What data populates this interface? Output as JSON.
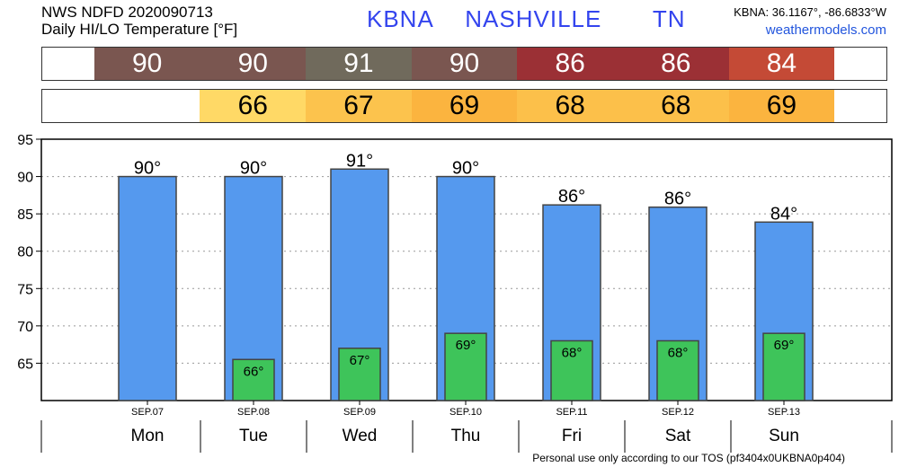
{
  "header": {
    "line1": "NWS NDFD 2020090713",
    "line2": "Daily HI/LO Temperature [°F]",
    "station": "KBNA",
    "city": "NASHVILLE",
    "state": "TN",
    "coords": "KBNA: 36.1167°, -86.6833°W",
    "site": "weathermodels.com"
  },
  "hi_strip": [
    {
      "value": "90",
      "color": "#7a5650"
    },
    {
      "value": "90",
      "color": "#7a5650"
    },
    {
      "value": "91",
      "color": "#706a5c"
    },
    {
      "value": "90",
      "color": "#7a5650"
    },
    {
      "value": "86",
      "color": "#9b3035"
    },
    {
      "value": "86",
      "color": "#9b3035"
    },
    {
      "value": "84",
      "color": "#c44a36"
    }
  ],
  "lo_strip": [
    {
      "value": "",
      "color": "#ffffff"
    },
    {
      "value": "66",
      "color": "#ffd966"
    },
    {
      "value": "67",
      "color": "#fcc34d"
    },
    {
      "value": "69",
      "color": "#fbb43f"
    },
    {
      "value": "68",
      "color": "#fcc04a"
    },
    {
      "value": "68",
      "color": "#fcc04a"
    },
    {
      "value": "69",
      "color": "#fbb43f"
    }
  ],
  "chart_data": {
    "type": "bar",
    "categories": [
      "SEP.07",
      "SEP.08",
      "SEP.09",
      "SEP.10",
      "SEP.11",
      "SEP.12",
      "SEP.13"
    ],
    "weekdays": [
      "Mon",
      "Tue",
      "Wed",
      "Thu",
      "Fri",
      "Sat",
      "Sun"
    ],
    "series": [
      {
        "values": [
          90,
          90,
          91,
          90,
          86.2,
          85.9,
          83.9
        ],
        "labels": [
          "90°",
          "90°",
          "91°",
          "90°",
          "86°",
          "86°",
          "84°"
        ],
        "color": "#5599ee"
      },
      {
        "values": [
          null,
          65.5,
          67,
          69,
          68,
          68,
          69
        ],
        "labels": [
          "",
          "66°",
          "67°",
          "69°",
          "68°",
          "68°",
          "69°"
        ],
        "color": "#3ec45a"
      }
    ],
    "ylim": [
      60,
      95
    ],
    "yticks": [
      65,
      70,
      75,
      80,
      85,
      90,
      95
    ],
    "grid": true
  },
  "footer": "Personal use only according to our TOS (pf3404x0UKBNA0p404)"
}
